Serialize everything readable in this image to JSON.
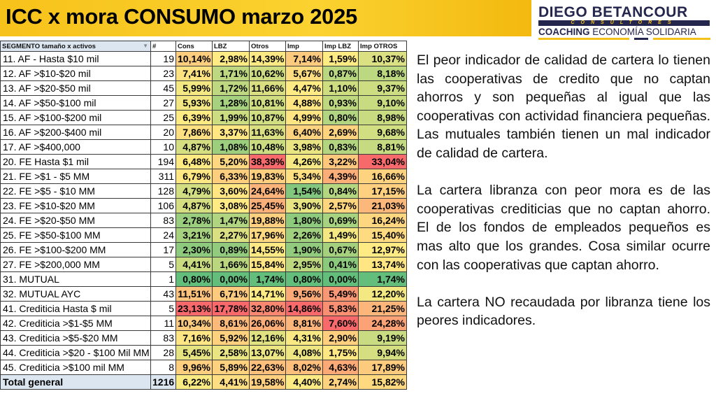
{
  "header": {
    "title": "ICC x mora CONSUMO marzo 2025"
  },
  "logo": {
    "line1": "DIEGO BETANCOUR",
    "line2": "CONSULTORES",
    "line3a": "COACHING",
    "line3b": "ECONOMÍA SOLIDARIA"
  },
  "colors": {
    "low": "#63BE7B",
    "mid": "#FFEB84",
    "high": "#F8696B",
    "title_bg": "#FBD230"
  },
  "table": {
    "columns": [
      "SEGMENTO tamaño x activos",
      "#",
      "Cons",
      "LBZ",
      "Otros",
      "Imp",
      "Imp LBZ",
      "Imp OTROS"
    ],
    "rows": [
      [
        "11. AF - Hasta $10 mil",
        "19",
        "10,14%",
        "2,98%",
        "14,39%",
        "7,14%",
        "1,59%",
        "10,37%"
      ],
      [
        "12. AF >$10-$20 mil",
        "23",
        "7,41%",
        "1,71%",
        "10,62%",
        "5,67%",
        "0,87%",
        "8,18%"
      ],
      [
        "13. AF >$20-$50 mil",
        "45",
        "5,99%",
        "1,72%",
        "11,66%",
        "4,47%",
        "1,10%",
        "9,37%"
      ],
      [
        "14. AF >$50-$100 mil",
        "27",
        "5,93%",
        "1,28%",
        "10,81%",
        "4,88%",
        "0,93%",
        "9,10%"
      ],
      [
        "15. AF >$100-$200 mil",
        "25",
        "6,39%",
        "1,99%",
        "10,87%",
        "4,99%",
        "0,80%",
        "8,98%"
      ],
      [
        "16. AF >$200-$400 mil",
        "20",
        "7,86%",
        "3,37%",
        "11,63%",
        "6,40%",
        "2,69%",
        "9,68%"
      ],
      [
        "17. AF >$400,000",
        "10",
        "4,87%",
        "1,08%",
        "10,48%",
        "3,98%",
        "0,83%",
        "8,81%"
      ],
      [
        "20. FE Hasta $1 mil",
        "194",
        "6,48%",
        "5,20%",
        "38,39%",
        "4,26%",
        "3,22%",
        "33,04%"
      ],
      [
        "21. FE >$1 - $5 MM",
        "311",
        "6,79%",
        "6,33%",
        "19,83%",
        "5,34%",
        "4,39%",
        "16,66%"
      ],
      [
        "22. FE >$5 - $10 MM",
        "128",
        "4,79%",
        "3,60%",
        "24,64%",
        "1,54%",
        "0,84%",
        "17,15%"
      ],
      [
        "23. FE >$10-$20 MM",
        "106",
        "4,87%",
        "3,08%",
        "25,45%",
        "3,90%",
        "2,57%",
        "21,03%"
      ],
      [
        "24. FE >$20-$50 MM",
        "83",
        "2,78%",
        "1,47%",
        "19,88%",
        "1,80%",
        "0,69%",
        "16,24%"
      ],
      [
        "25. FE >$50-$100 MM",
        "24",
        "3,21%",
        "2,27%",
        "17,96%",
        "2,26%",
        "1,49%",
        "15,40%"
      ],
      [
        "26. FE >$100-$200 MM",
        "17",
        "2,30%",
        "0,89%",
        "14,55%",
        "1,90%",
        "0,67%",
        "12,97%"
      ],
      [
        "27. FE >$200,000 MM",
        "5",
        "4,41%",
        "1,66%",
        "15,84%",
        "2,95%",
        "0,41%",
        "13,74%"
      ],
      [
        "31. MUTUAL",
        "1",
        "0,80%",
        "0,00%",
        "1,74%",
        "0,80%",
        "0,00%",
        "1,74%"
      ],
      [
        "32. MUTUAL AYC",
        "43",
        "11,51%",
        "6,71%",
        "14,71%",
        "9,56%",
        "5,49%",
        "12,20%"
      ],
      [
        "41. Crediticia Hasta $ mil",
        "5",
        "23,13%",
        "17,78%",
        "32,80%",
        "14,86%",
        "5,83%",
        "21,25%"
      ],
      [
        "42. Crediticia >$1-$5 MM",
        "11",
        "10,34%",
        "8,61%",
        "26,06%",
        "8,81%",
        "7,60%",
        "24,28%"
      ],
      [
        "43. Crediticia >$5-$20 MM",
        "83",
        "7,16%",
        "5,92%",
        "12,16%",
        "4,31%",
        "2,90%",
        "9,19%"
      ],
      [
        "44. Crediticia >$20 - $100 Mil MM",
        "28",
        "5,45%",
        "2,58%",
        "13,07%",
        "4,08%",
        "1,75%",
        "9,94%"
      ],
      [
        "45. Crediticia >$100 mil MM",
        "8",
        "9,96%",
        "5,89%",
        "22,63%",
        "8,02%",
        "4,63%",
        "17,89%"
      ]
    ],
    "total": [
      "Total general",
      "1216",
      "6,22%",
      "4,41%",
      "19,58%",
      "4,40%",
      "2,74%",
      "15,82%"
    ]
  },
  "text": {
    "paragraphs": [
      "El peor indicador de calidad de cartera lo tienen las cooperativas de credito que no captan ahorros y son pequeñas al igual que las cooperativas con actividad financiera pequeñas.  Las mutuales también tienen un mal indicador de calidad de cartera.",
      "La cartera libranza con peor mora es de las cooperativas crediticias que no captan ahorro.  El de los fondos de empleados pequeños es mas alto que los grandes. Cosa similar ocurre con las cooperativas que captan ahorro.",
      "La cartera NO recaudada por libranza tiene los peores indicadores."
    ]
  }
}
